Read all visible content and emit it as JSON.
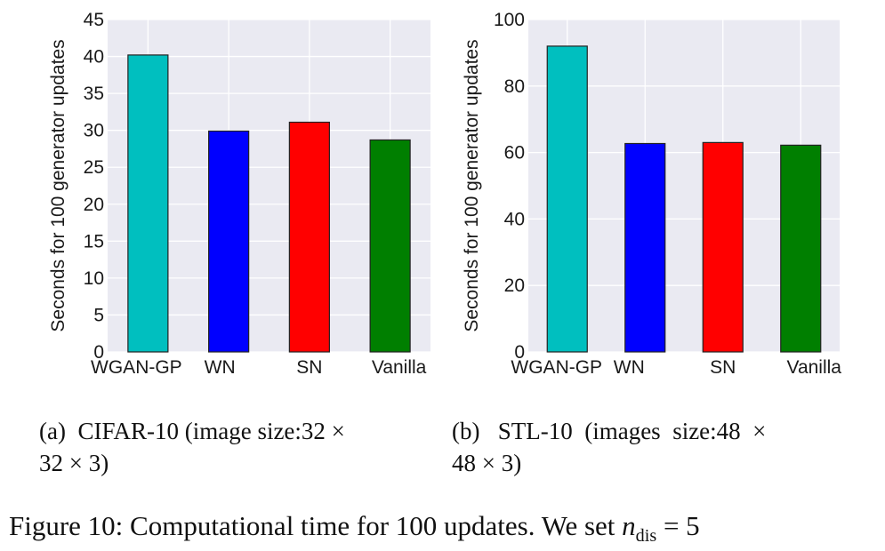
{
  "chart_data": [
    {
      "type": "bar",
      "ylabel": "Seconds for 100 generator updates",
      "categories": [
        "WGAN-GP",
        "WN",
        "SN",
        "Vanilla"
      ],
      "values": [
        40.2,
        29.9,
        31.1,
        28.7
      ],
      "colors": [
        "#00bfbf",
        "#0000ff",
        "#ff0000",
        "#007f00"
      ],
      "ylim": [
        0,
        45
      ],
      "yticks": [
        0,
        5,
        10,
        15,
        20,
        25,
        30,
        35,
        40,
        45
      ],
      "grid": true,
      "caption": "(a) CIFAR-10 (image size:32 × 32 × 3)"
    },
    {
      "type": "bar",
      "ylabel": "Seconds for 100 generator updates",
      "categories": [
        "WGAN-GP",
        "WN",
        "SN",
        "Vanilla"
      ],
      "values": [
        92.0,
        62.7,
        63.0,
        62.2
      ],
      "colors": [
        "#00bfbf",
        "#0000ff",
        "#ff0000",
        "#007f00"
      ],
      "ylim": [
        0,
        100
      ],
      "yticks": [
        0,
        20,
        40,
        60,
        80,
        100
      ],
      "grid": true,
      "caption": "(b) STL-10 (images size:48 × 48 × 3)"
    }
  ],
  "captions": {
    "a_line1": "(a)  CIFAR-10 (image size:32 ×",
    "a_line2": "32 × 3)",
    "b_line1": "(b)   STL-10  (images  size:48  ×",
    "b_line2": "48 × 3)"
  },
  "figure": {
    "text": "Figure 10: Computational time for 100 updates. We set ",
    "math_var": "n",
    "math_sub": "dis",
    "math_rest": " = 5"
  }
}
